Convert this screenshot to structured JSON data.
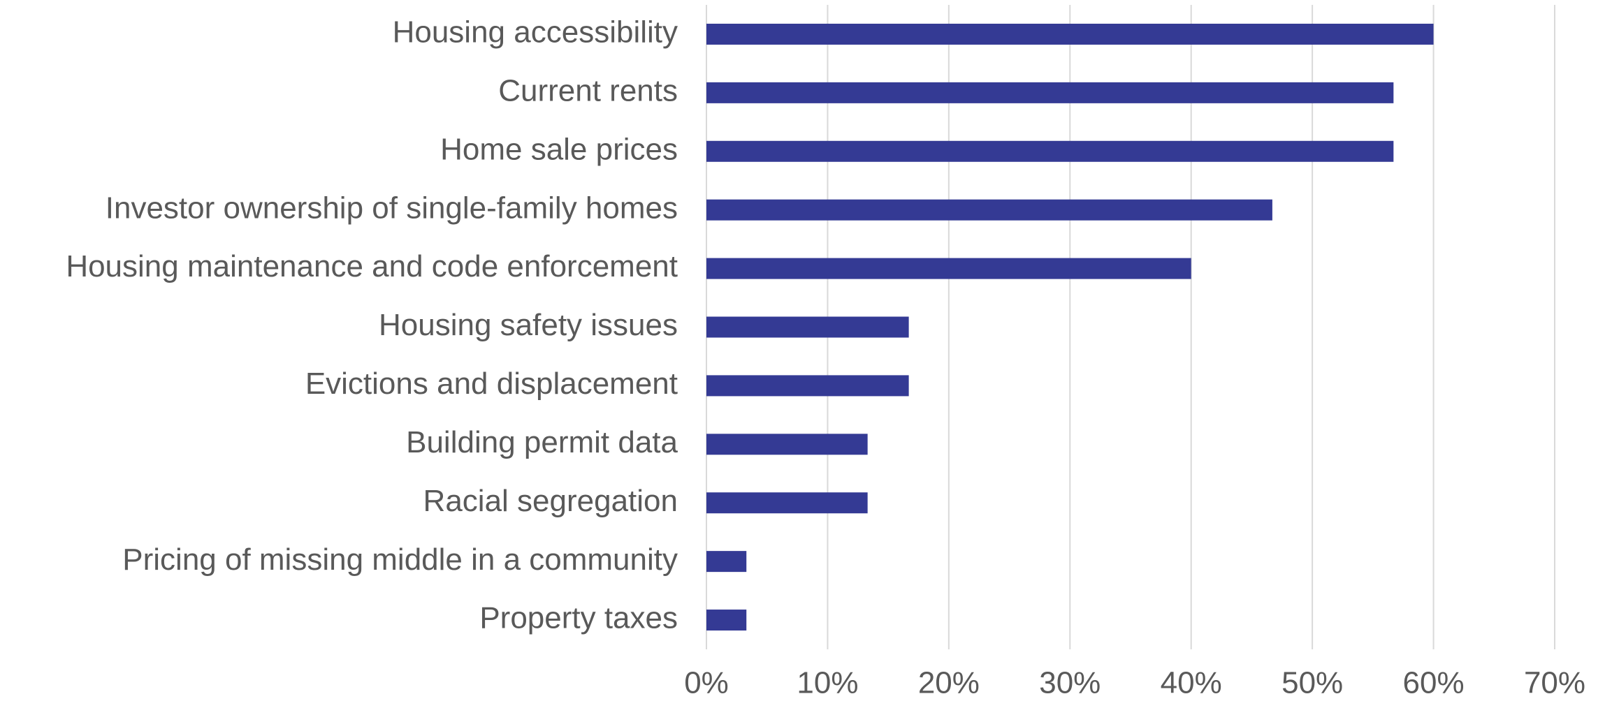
{
  "chart_data": {
    "type": "barh",
    "categories": [
      "Housing accessibility",
      "Current rents",
      "Home sale prices",
      "Investor ownership of single-family homes",
      "Housing maintenance and code enforcement",
      "Housing safety issues",
      "Evictions and displacement",
      "Building permit data",
      "Racial segregation",
      "Pricing of missing middle in a community",
      "Property taxes"
    ],
    "values": [
      60,
      56.7,
      56.7,
      46.7,
      40,
      16.7,
      16.7,
      13.3,
      13.3,
      3.3,
      3.3
    ],
    "color": "#343a94",
    "xlim": [
      0,
      70
    ],
    "xticks": [
      {
        "value": 0,
        "label": "0%"
      },
      {
        "value": 10,
        "label": "10%"
      },
      {
        "value": 20,
        "label": "20%"
      },
      {
        "value": 30,
        "label": "30%"
      },
      {
        "value": 40,
        "label": "40%"
      },
      {
        "value": 50,
        "label": "50%"
      },
      {
        "value": 60,
        "label": "60%"
      },
      {
        "value": 70,
        "label": "70%"
      }
    ],
    "grid": true
  }
}
